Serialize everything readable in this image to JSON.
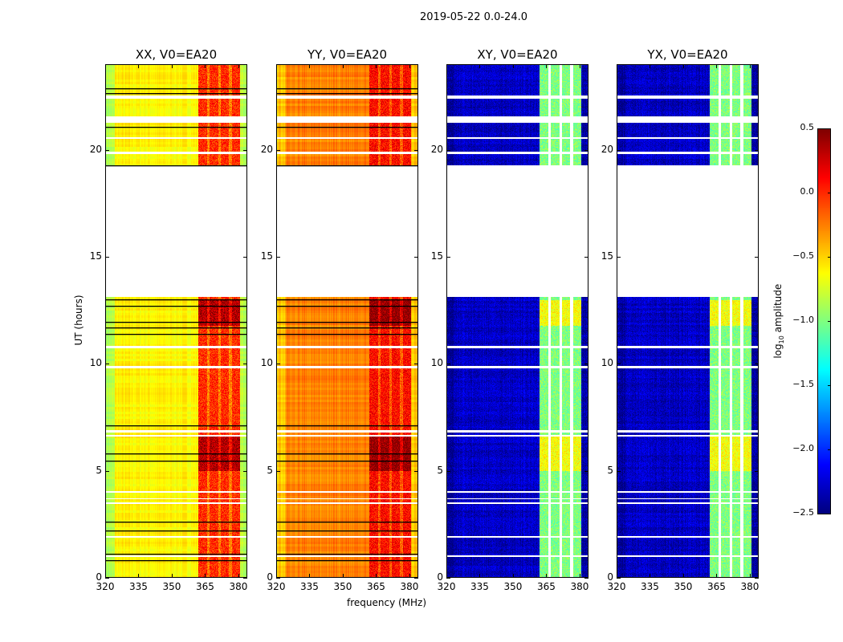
{
  "figure": {
    "suptitle": "2019-05-22 0.0-24.0",
    "xlabel": "frequency (MHz)",
    "ylabel": "UT (hours)"
  },
  "colorbar": {
    "label_prefix": "log",
    "label_sub": "10",
    "label_suffix": " amplitude",
    "range": [
      -2.5,
      0.5
    ],
    "ticks": [
      0.5,
      0.0,
      -0.5,
      -1.0,
      -1.5,
      -2.0,
      -2.5
    ],
    "tick_labels": [
      "0.5",
      "0.0",
      "−0.5",
      "−1.0",
      "−1.5",
      "−2.0",
      "−2.5"
    ],
    "colormap": "jet"
  },
  "chart_data": [
    {
      "type": "heatmap",
      "title": "XX, V0=EA20",
      "base": -0.6,
      "edge": -0.85,
      "band": 0.0,
      "band_gap_mode": "dim",
      "black_lines": true
    },
    {
      "type": "heatmap",
      "title": "YY, V0=EA20",
      "base": -0.25,
      "edge": -0.45,
      "band": 0.1,
      "band_gap_mode": "dim",
      "black_lines": true
    },
    {
      "type": "heatmap",
      "title": "XY, V0=EA20",
      "base": -2.3,
      "edge": -2.4,
      "band": -1.0,
      "band_gap_mode": "flag",
      "black_lines": false
    },
    {
      "type": "heatmap",
      "title": "YX, V0=EA20",
      "base": -2.3,
      "edge": -2.4,
      "band": -1.0,
      "band_gap_mode": "flag",
      "black_lines": false
    }
  ],
  "axes": {
    "xlim": [
      320,
      384
    ],
    "ylim": [
      0,
      24
    ],
    "xticks": [
      320,
      335,
      350,
      365,
      380
    ],
    "xtick_labels": [
      "320",
      "335",
      "350",
      "365",
      "380"
    ],
    "yticks": [
      0,
      5,
      10,
      15,
      20
    ],
    "ytick_labels": [
      "0",
      "5",
      "10",
      "15",
      "20"
    ],
    "rfi_band_mhz": [
      362,
      381
    ],
    "band_gap_channels_mhz": [
      366.5,
      371.5,
      376.5
    ],
    "bright_hours": [
      [
        5.0,
        6.6
      ],
      [
        11.8,
        13.0
      ]
    ],
    "flagged_hours": [
      [
        13.15,
        19.3
      ],
      [
        21.3,
        21.6
      ],
      [
        22.45,
        22.6
      ],
      [
        20.55,
        20.65
      ],
      [
        19.85,
        19.95
      ],
      [
        10.75,
        10.85
      ],
      [
        9.8,
        9.9
      ],
      [
        6.8,
        6.9
      ],
      [
        6.6,
        6.68
      ],
      [
        3.95,
        4.05
      ],
      [
        3.65,
        3.72
      ],
      [
        3.45,
        3.52
      ],
      [
        1.85,
        1.95
      ],
      [
        0.95,
        1.05
      ]
    ],
    "black_line_hours": [
      22.9,
      22.7,
      21.1,
      19.3,
      13.0,
      12.7,
      11.95,
      11.7,
      11.4,
      7.1,
      5.8,
      5.45,
      2.6,
      2.2,
      1.1,
      0.8
    ]
  }
}
